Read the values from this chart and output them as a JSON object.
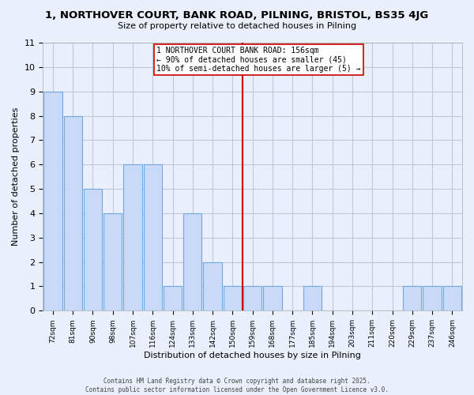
{
  "title": "1, NORTHOVER COURT, BANK ROAD, PILNING, BRISTOL, BS35 4JG",
  "subtitle": "Size of property relative to detached houses in Pilning",
  "xlabel": "Distribution of detached houses by size in Pilning",
  "ylabel": "Number of detached properties",
  "bar_labels": [
    "72sqm",
    "81sqm",
    "90sqm",
    "98sqm",
    "107sqm",
    "116sqm",
    "124sqm",
    "133sqm",
    "142sqm",
    "150sqm",
    "159sqm",
    "168sqm",
    "177sqm",
    "185sqm",
    "194sqm",
    "203sqm",
    "211sqm",
    "220sqm",
    "229sqm",
    "237sqm",
    "246sqm"
  ],
  "bar_values": [
    9,
    8,
    5,
    4,
    6,
    6,
    1,
    4,
    2,
    1,
    1,
    1,
    0,
    1,
    0,
    0,
    0,
    0,
    1,
    1,
    1
  ],
  "bar_color": "#c9daf8",
  "bar_edge_color": "#6fa8dc",
  "vline_x": 9.5,
  "vline_color": "#cc0000",
  "ylim": [
    0,
    11
  ],
  "yticks": [
    0,
    1,
    2,
    3,
    4,
    5,
    6,
    7,
    8,
    9,
    10,
    11
  ],
  "grid_color": "#c0c8d8",
  "bg_color": "#eaf0fb",
  "annotation_line1": "1 NORTHOVER COURT BANK ROAD: 156sqm",
  "annotation_line2": "← 90% of detached houses are smaller (45)",
  "annotation_line3": "10% of semi-detached houses are larger (5) →",
  "annotation_box_color": "#ffffff",
  "annotation_box_edge": "#cc0000",
  "footnote1": "Contains HM Land Registry data © Crown copyright and database right 2025.",
  "footnote2": "Contains public sector information licensed under the Open Government Licence v3.0."
}
